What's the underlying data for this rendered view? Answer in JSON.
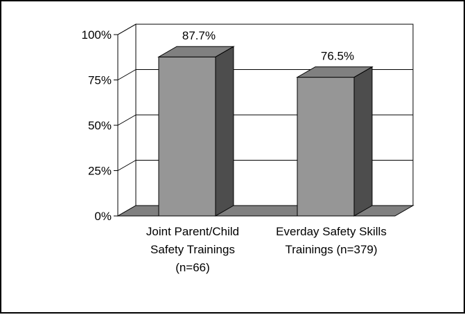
{
  "chart_data": {
    "type": "bar",
    "title": "",
    "xlabel": "",
    "ylabel": "",
    "ylim": [
      0,
      100
    ],
    "yticks": [
      0,
      25,
      50,
      75,
      100
    ],
    "ytick_labels": [
      "0%",
      "25%",
      "50%",
      "75%",
      "100%"
    ],
    "categories": [
      [
        "Joint Parent/Child",
        "Safety Trainings",
        "(n=66)"
      ],
      [
        "Everday Safety Skills",
        "Trainings (n=379)"
      ]
    ],
    "values": [
      87.7,
      76.5
    ],
    "data_labels": [
      "87.7%",
      "76.5%"
    ],
    "grid": true,
    "legend": "none",
    "style": "3d-column",
    "colors": {
      "bar_front": "#969696",
      "bar_side": "#4d4d4d",
      "bar_top": "#808080",
      "floor": "#808080",
      "frame": "#000000"
    }
  }
}
